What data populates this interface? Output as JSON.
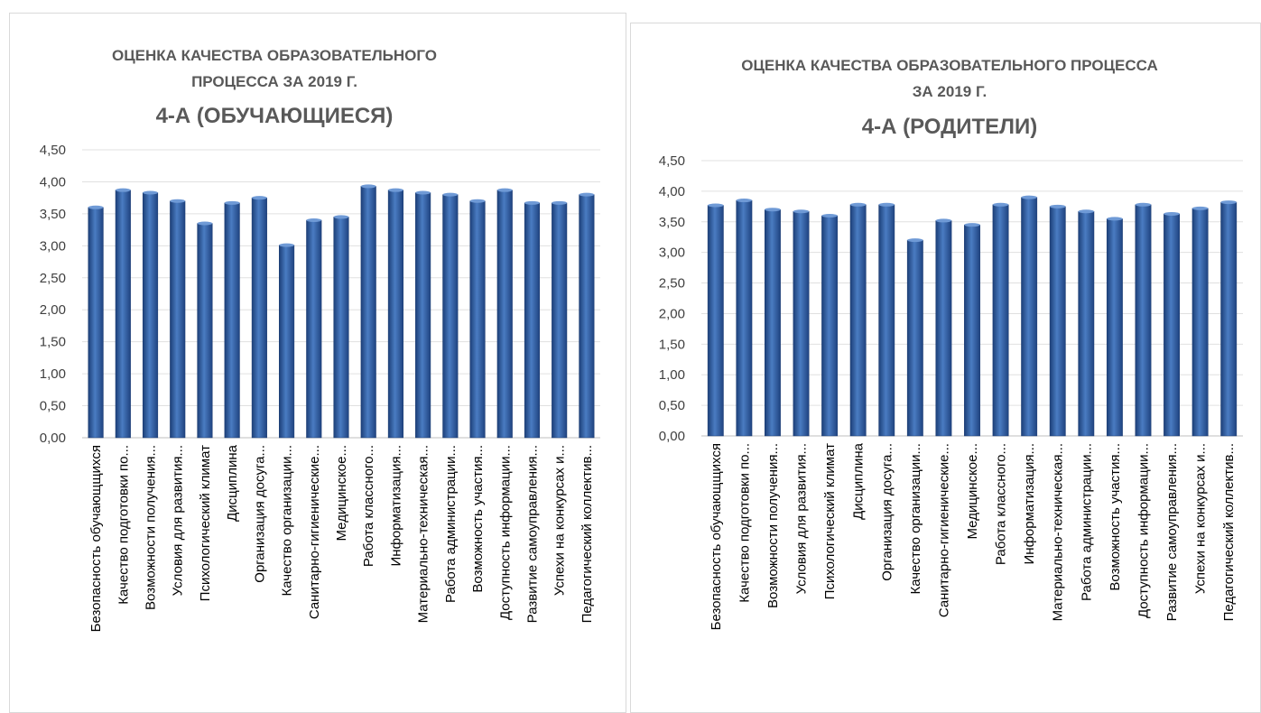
{
  "chart_data": [
    {
      "type": "bar",
      "title": "ОЦЕНКА КАЧЕСТВА ОБРАЗОВАТЕЛЬНОГО ПРОЦЕССА ЗА 2019 Г.",
      "title_lines": [
        "ОЦЕНКА КАЧЕСТВА ОБРАЗОВАТЕЛЬНОГО",
        "ПРОЦЕССА ЗА 2019 Г."
      ],
      "subtitle": "4-А (ОБУЧАЮЩИЕСЯ)",
      "ylim": [
        0,
        4.5
      ],
      "yticks": [
        "0,00",
        "0,50",
        "1,00",
        "1,50",
        "2,00",
        "2,50",
        "3,00",
        "3,50",
        "4,00",
        "4,50"
      ],
      "grid": true,
      "bar_color": "#2f5f9f",
      "categories": [
        "Безопасность обучающщихся",
        "Качество подготовки по...",
        "Возможности получения...",
        "Условия для развития...",
        "Психологический климат",
        "Дисциплина",
        "Организация досуга...",
        "Качество организации...",
        "Санитарно-гигиенические...",
        "Медицинское...",
        "Работа классного...",
        "Информатизация...",
        "Материально-техническая...",
        "Работа администрации...",
        "Возможность участия...",
        "Доступность информации...",
        "Развитие самоуправления...",
        "Успехи на конкурсах и...",
        "Педагогический коллектив..."
      ],
      "values": [
        3.6,
        3.87,
        3.83,
        3.7,
        3.35,
        3.67,
        3.75,
        3.01,
        3.4,
        3.45,
        3.93,
        3.87,
        3.83,
        3.8,
        3.7,
        3.87,
        3.67,
        3.67,
        3.8
      ]
    },
    {
      "type": "bar",
      "title": "ОЦЕНКА КАЧЕСТВА ОБРАЗОВАТЕЛЬНОГО ПРОЦЕССА ЗА 2019 Г.",
      "title_lines": [
        "ОЦЕНКА КАЧЕСТВА ОБРАЗОВАТЕЛЬНОГО ПРОЦЕССА",
        "ЗА 2019 Г."
      ],
      "subtitle": "4-А (РОДИТЕЛИ)",
      "ylim": [
        0,
        4.5
      ],
      "yticks": [
        "0,00",
        "0,50",
        "1,00",
        "1,50",
        "2,00",
        "2,50",
        "3,00",
        "3,50",
        "4,00",
        "4,50"
      ],
      "grid": true,
      "bar_color": "#2f5f9f",
      "categories": [
        "Безопасность обучающщихся",
        "Качество подготовки по...",
        "Возможности получения...",
        "Условия для развития...",
        "Психологический климат",
        "Дисциплина",
        "Организация досуга...",
        "Качество организации...",
        "Санитарно-гигиенические...",
        "Медицинское...",
        "Работа классного...",
        "Информатизация...",
        "Материально-техническая...",
        "Работа администрации...",
        "Возможность участия...",
        "Доступность информации...",
        "Развитие самоуправления...",
        "Успехи на конкурсах и...",
        "Педагогический коллектив..."
      ],
      "values": [
        3.77,
        3.85,
        3.7,
        3.67,
        3.6,
        3.78,
        3.78,
        3.2,
        3.52,
        3.45,
        3.78,
        3.9,
        3.75,
        3.67,
        3.55,
        3.78,
        3.63,
        3.72,
        3.82
      ]
    }
  ]
}
